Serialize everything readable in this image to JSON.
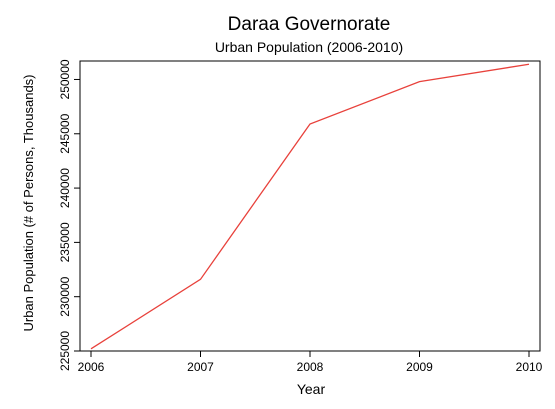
{
  "chart_data": {
    "type": "line",
    "title": "Daraa Governorate",
    "subtitle": "Urban Population (2006-2010)",
    "xlabel": "Year",
    "ylabel": "Urban Population (# of Persons, Thousands)",
    "x": [
      2006,
      2007,
      2008,
      2009,
      2010
    ],
    "series": [
      {
        "values": [
          225200,
          231600,
          245900,
          249800,
          251400
        ],
        "color": "#e8413b"
      }
    ],
    "xlim": [
      2006,
      2010
    ],
    "ylim": [
      225000,
      251700
    ],
    "xticks": [
      "2006",
      "2007",
      "2008",
      "2009",
      "2010"
    ],
    "yticks": [
      "225000",
      "230000",
      "235000",
      "240000",
      "245000",
      "250000"
    ],
    "grid": false
  }
}
